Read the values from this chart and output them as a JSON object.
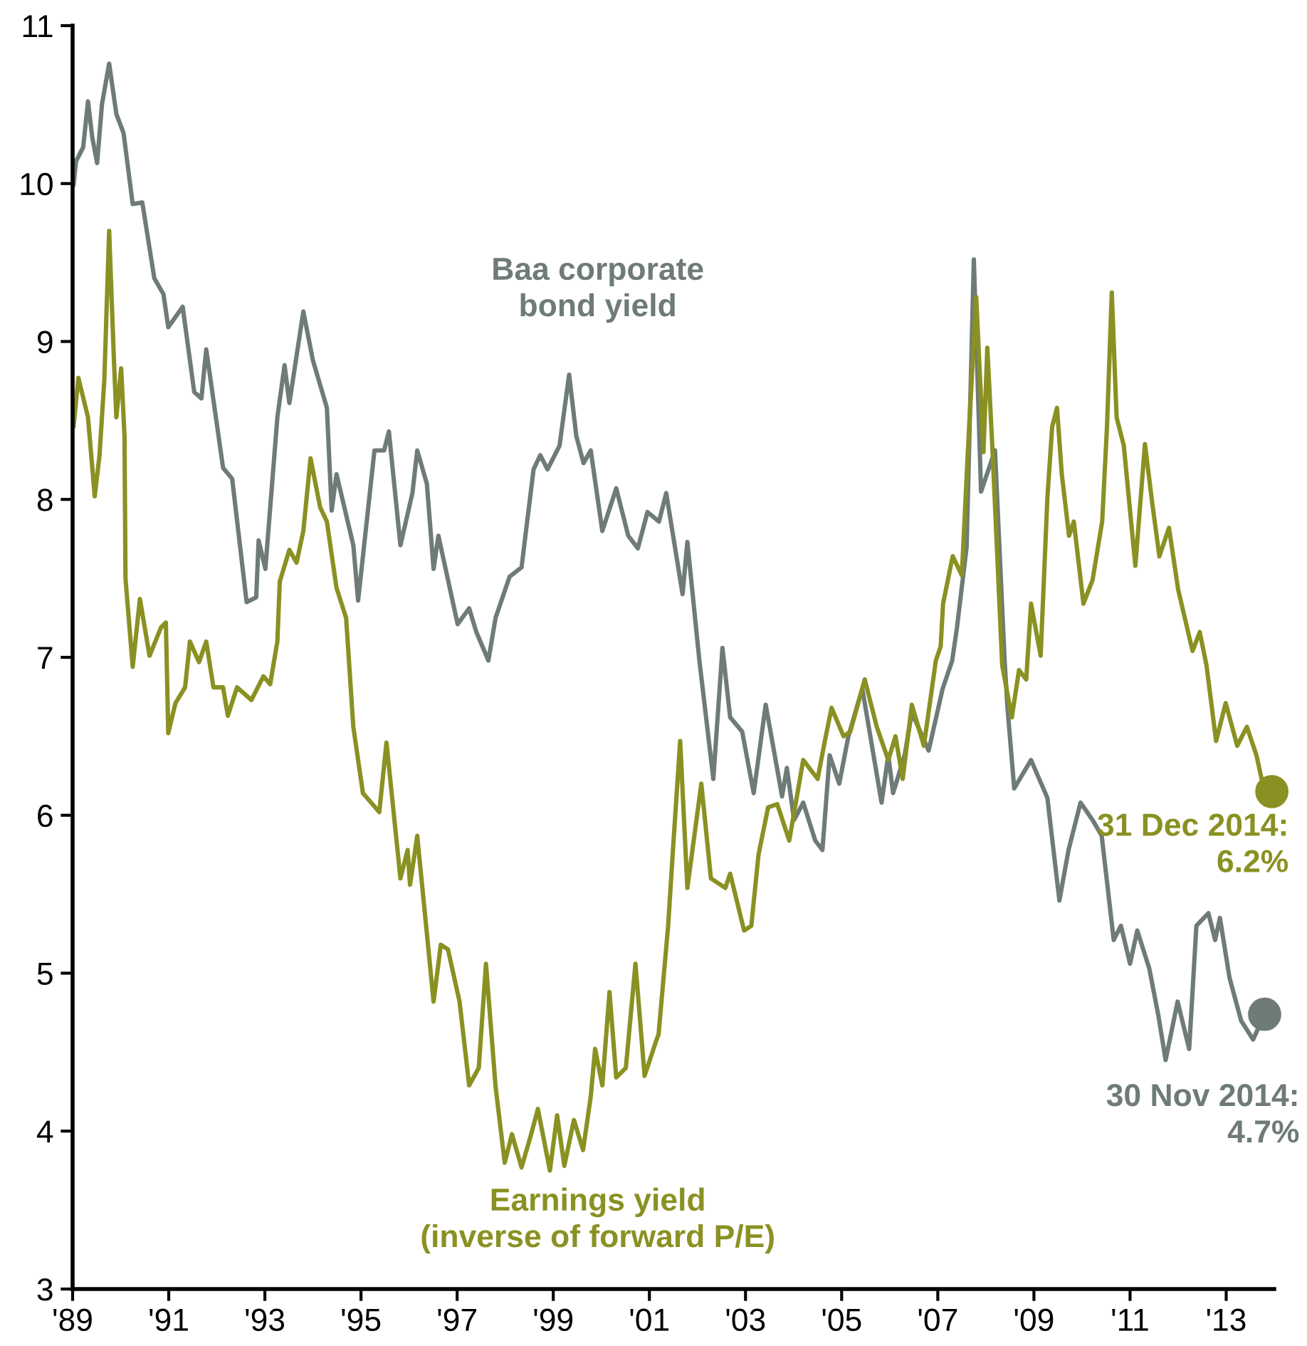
{
  "chart_data": {
    "type": "line",
    "xlim": [
      1989,
      2014
    ],
    "ylim": [
      3,
      11
    ],
    "xticks": [
      {
        "value": 1989,
        "label": "'89"
      },
      {
        "value": 1991,
        "label": "'91"
      },
      {
        "value": 1993,
        "label": "'93"
      },
      {
        "value": 1995,
        "label": "'95"
      },
      {
        "value": 1997,
        "label": "'97"
      },
      {
        "value": 1999,
        "label": "'99"
      },
      {
        "value": 2001,
        "label": "'01"
      },
      {
        "value": 2003,
        "label": "'03"
      },
      {
        "value": 2005,
        "label": "'05"
      },
      {
        "value": 2007,
        "label": "'07"
      },
      {
        "value": 2009,
        "label": "'09"
      },
      {
        "value": 2011,
        "label": "'11"
      },
      {
        "value": 2013,
        "label": "'13"
      }
    ],
    "yticks": [
      3,
      4,
      5,
      6,
      7,
      8,
      9,
      10,
      11
    ],
    "grid": false,
    "legend": false,
    "line_style": "solid",
    "series": [
      {
        "name": "Baa corporate\nbond yield",
        "color": "#6e7b78",
        "x": [
          1989.02,
          1989.07,
          1989.22,
          1989.32,
          1989.41,
          1989.51,
          1989.61,
          1989.76,
          1989.91,
          1990.06,
          1990.25,
          1990.45,
          1990.7,
          1990.89,
          1990.99,
          1991.29,
          1991.53,
          1991.68,
          1991.78,
          1992.13,
          1992.32,
          1992.62,
          1992.82,
          1992.87,
          1993.01,
          1993.26,
          1993.41,
          1993.51,
          1993.8,
          1994.0,
          1994.29,
          1994.39,
          1994.49,
          1994.84,
          1994.94,
          1995.28,
          1995.48,
          1995.58,
          1995.82,
          1996.07,
          1996.17,
          1996.37,
          1996.51,
          1996.61,
          1997.01,
          1997.25,
          1997.4,
          1997.65,
          1997.8,
          1998.09,
          1998.34,
          1998.59,
          1998.73,
          1998.88,
          1999.13,
          1999.33,
          1999.48,
          1999.63,
          1999.78,
          2000.02,
          2000.31,
          2000.56,
          2000.76,
          2000.96,
          2001.2,
          2001.35,
          2001.69,
          2001.79,
          2002.04,
          2002.33,
          2002.52,
          2002.68,
          2002.93,
          2003.17,
          2003.42,
          2003.76,
          2003.86,
          2004.01,
          2004.2,
          2004.45,
          2004.6,
          2004.75,
          2004.95,
          2005.14,
          2005.34,
          2005.43,
          2005.63,
          2005.83,
          2005.97,
          2006.07,
          2006.31,
          2006.46,
          2006.81,
          2007.1,
          2007.3,
          2007.4,
          2007.6,
          2007.75,
          2007.9,
          2008.19,
          2008.39,
          2008.45,
          2008.59,
          2008.94,
          2009.28,
          2009.53,
          2009.72,
          2009.97,
          2010.22,
          2010.41,
          2010.66,
          2010.81,
          2011.0,
          2011.15,
          2011.4,
          2011.59,
          2011.74,
          2011.99,
          2012.23,
          2012.38,
          2012.63,
          2012.77,
          2012.87,
          2013.07,
          2013.31,
          2013.56,
          2013.8
        ],
        "values": [
          9.99,
          10.14,
          10.23,
          10.52,
          10.29,
          10.13,
          10.5,
          10.76,
          10.44,
          10.32,
          9.87,
          9.88,
          9.4,
          9.3,
          9.09,
          9.22,
          8.68,
          8.64,
          8.95,
          8.2,
          8.13,
          7.35,
          7.38,
          7.74,
          7.56,
          8.52,
          8.85,
          8.61,
          9.19,
          8.88,
          8.58,
          7.93,
          8.16,
          7.71,
          7.36,
          8.31,
          8.31,
          8.43,
          7.71,
          8.04,
          8.31,
          8.1,
          7.56,
          7.77,
          7.21,
          7.31,
          7.16,
          6.98,
          7.25,
          7.51,
          7.57,
          8.19,
          8.28,
          8.19,
          8.34,
          8.79,
          8.4,
          8.23,
          8.31,
          7.8,
          8.07,
          7.77,
          7.69,
          7.92,
          7.86,
          8.04,
          7.4,
          7.73,
          6.98,
          6.23,
          7.06,
          6.62,
          6.53,
          6.14,
          6.7,
          6.12,
          6.3,
          5.97,
          6.08,
          5.84,
          5.78,
          6.38,
          6.2,
          6.5,
          6.71,
          6.8,
          6.44,
          6.08,
          6.38,
          6.14,
          6.38,
          6.65,
          6.41,
          6.8,
          6.98,
          7.19,
          7.7,
          9.52,
          8.05,
          8.31,
          6.98,
          6.68,
          6.17,
          6.35,
          6.11,
          5.46,
          5.78,
          6.08,
          5.97,
          5.87,
          5.21,
          5.3,
          5.06,
          5.27,
          5.03,
          4.73,
          4.45,
          4.82,
          4.52,
          5.3,
          5.38,
          5.21,
          5.35,
          4.97,
          4.7,
          4.58,
          4.74
        ]
      },
      {
        "name": "Earnings yield\n(inverse of forward P/E)",
        "color": "#8a9122",
        "x": [
          1989.02,
          1989.12,
          1989.32,
          1989.46,
          1989.56,
          1989.66,
          1989.76,
          1989.86,
          1989.91,
          1990.01,
          1990.08,
          1990.1,
          1990.25,
          1990.4,
          1990.6,
          1990.84,
          1990.94,
          1990.99,
          1991.14,
          1991.34,
          1991.44,
          1991.63,
          1991.78,
          1991.93,
          1992.13,
          1992.23,
          1992.42,
          1992.72,
          1992.97,
          1993.11,
          1993.26,
          1993.31,
          1993.51,
          1993.66,
          1993.8,
          1993.95,
          1994.15,
          1994.29,
          1994.49,
          1994.69,
          1994.84,
          1995.04,
          1995.38,
          1995.53,
          1995.82,
          1995.97,
          1996.02,
          1996.17,
          1996.51,
          1996.66,
          1996.81,
          1997.05,
          1997.25,
          1997.45,
          1997.6,
          1997.8,
          1997.99,
          1998.14,
          1998.34,
          1998.54,
          1998.68,
          1998.93,
          1999.08,
          1999.23,
          1999.43,
          1999.62,
          1999.78,
          1999.87,
          2000.02,
          2000.17,
          2000.31,
          2000.51,
          2000.71,
          2000.9,
          2001.15,
          2001.19,
          2001.39,
          2001.49,
          2001.64,
          2001.79,
          2002.08,
          2002.28,
          2002.58,
          2002.68,
          2002.97,
          2003.12,
          2003.27,
          2003.47,
          2003.66,
          2003.91,
          2004.2,
          2004.5,
          2004.65,
          2004.79,
          2005.04,
          2005.18,
          2005.48,
          2005.73,
          2005.97,
          2006.12,
          2006.27,
          2006.46,
          2006.71,
          2006.96,
          2007.06,
          2007.11,
          2007.31,
          2007.5,
          2007.65,
          2007.8,
          2007.95,
          2008.03,
          2008.14,
          2008.34,
          2008.54,
          2008.69,
          2008.84,
          2008.94,
          2009.14,
          2009.28,
          2009.38,
          2009.48,
          2009.58,
          2009.73,
          2009.83,
          2010.03,
          2010.22,
          2010.42,
          2010.52,
          2010.62,
          2010.72,
          2010.87,
          2011.11,
          2011.31,
          2011.46,
          2011.61,
          2011.81,
          2012.0,
          2012.3,
          2012.45,
          2012.59,
          2012.79,
          2012.99,
          2013.23,
          2013.43,
          2013.63,
          2013.78,
          2013.95
        ],
        "values": [
          8.46,
          8.77,
          8.52,
          8.02,
          8.28,
          8.76,
          9.7,
          8.88,
          8.52,
          8.83,
          8.4,
          7.5,
          6.94,
          7.37,
          7.01,
          7.19,
          7.22,
          6.52,
          6.71,
          6.81,
          7.1,
          6.97,
          7.1,
          6.81,
          6.81,
          6.63,
          6.81,
          6.73,
          6.88,
          6.83,
          7.1,
          7.48,
          7.68,
          7.6,
          7.8,
          8.26,
          7.95,
          7.86,
          7.44,
          7.25,
          6.56,
          6.14,
          6.02,
          6.46,
          5.6,
          5.78,
          5.56,
          5.87,
          4.82,
          5.18,
          5.15,
          4.82,
          4.29,
          4.4,
          5.06,
          4.28,
          3.8,
          3.98,
          3.77,
          3.98,
          4.14,
          3.75,
          4.1,
          3.78,
          4.07,
          3.88,
          4.22,
          4.52,
          4.29,
          4.88,
          4.34,
          4.4,
          5.06,
          4.35,
          4.58,
          4.61,
          5.3,
          5.78,
          6.47,
          5.54,
          6.2,
          5.6,
          5.54,
          5.63,
          5.27,
          5.3,
          5.75,
          6.05,
          6.07,
          5.84,
          6.35,
          6.23,
          6.47,
          6.68,
          6.5,
          6.53,
          6.86,
          6.56,
          6.35,
          6.5,
          6.23,
          6.7,
          6.44,
          6.98,
          7.07,
          7.34,
          7.64,
          7.52,
          8.45,
          9.28,
          8.3,
          8.96,
          8.3,
          6.95,
          6.62,
          6.92,
          6.86,
          7.34,
          7.01,
          8.01,
          8.46,
          8.58,
          8.16,
          7.77,
          7.86,
          7.34,
          7.49,
          7.86,
          8.46,
          9.31,
          8.52,
          8.34,
          7.58,
          8.35,
          7.98,
          7.64,
          7.82,
          7.43,
          7.04,
          7.16,
          6.95,
          6.47,
          6.71,
          6.44,
          6.56,
          6.38,
          6.17,
          6.15
        ]
      }
    ],
    "annotations": [
      {
        "text": "30 Nov 2014:\n4.7%",
        "x": 2013.8,
        "y": 4.74
      },
      {
        "text": "31 Dec 2014:\n6.2%",
        "x": 2013.95,
        "y": 6.15
      }
    ]
  }
}
